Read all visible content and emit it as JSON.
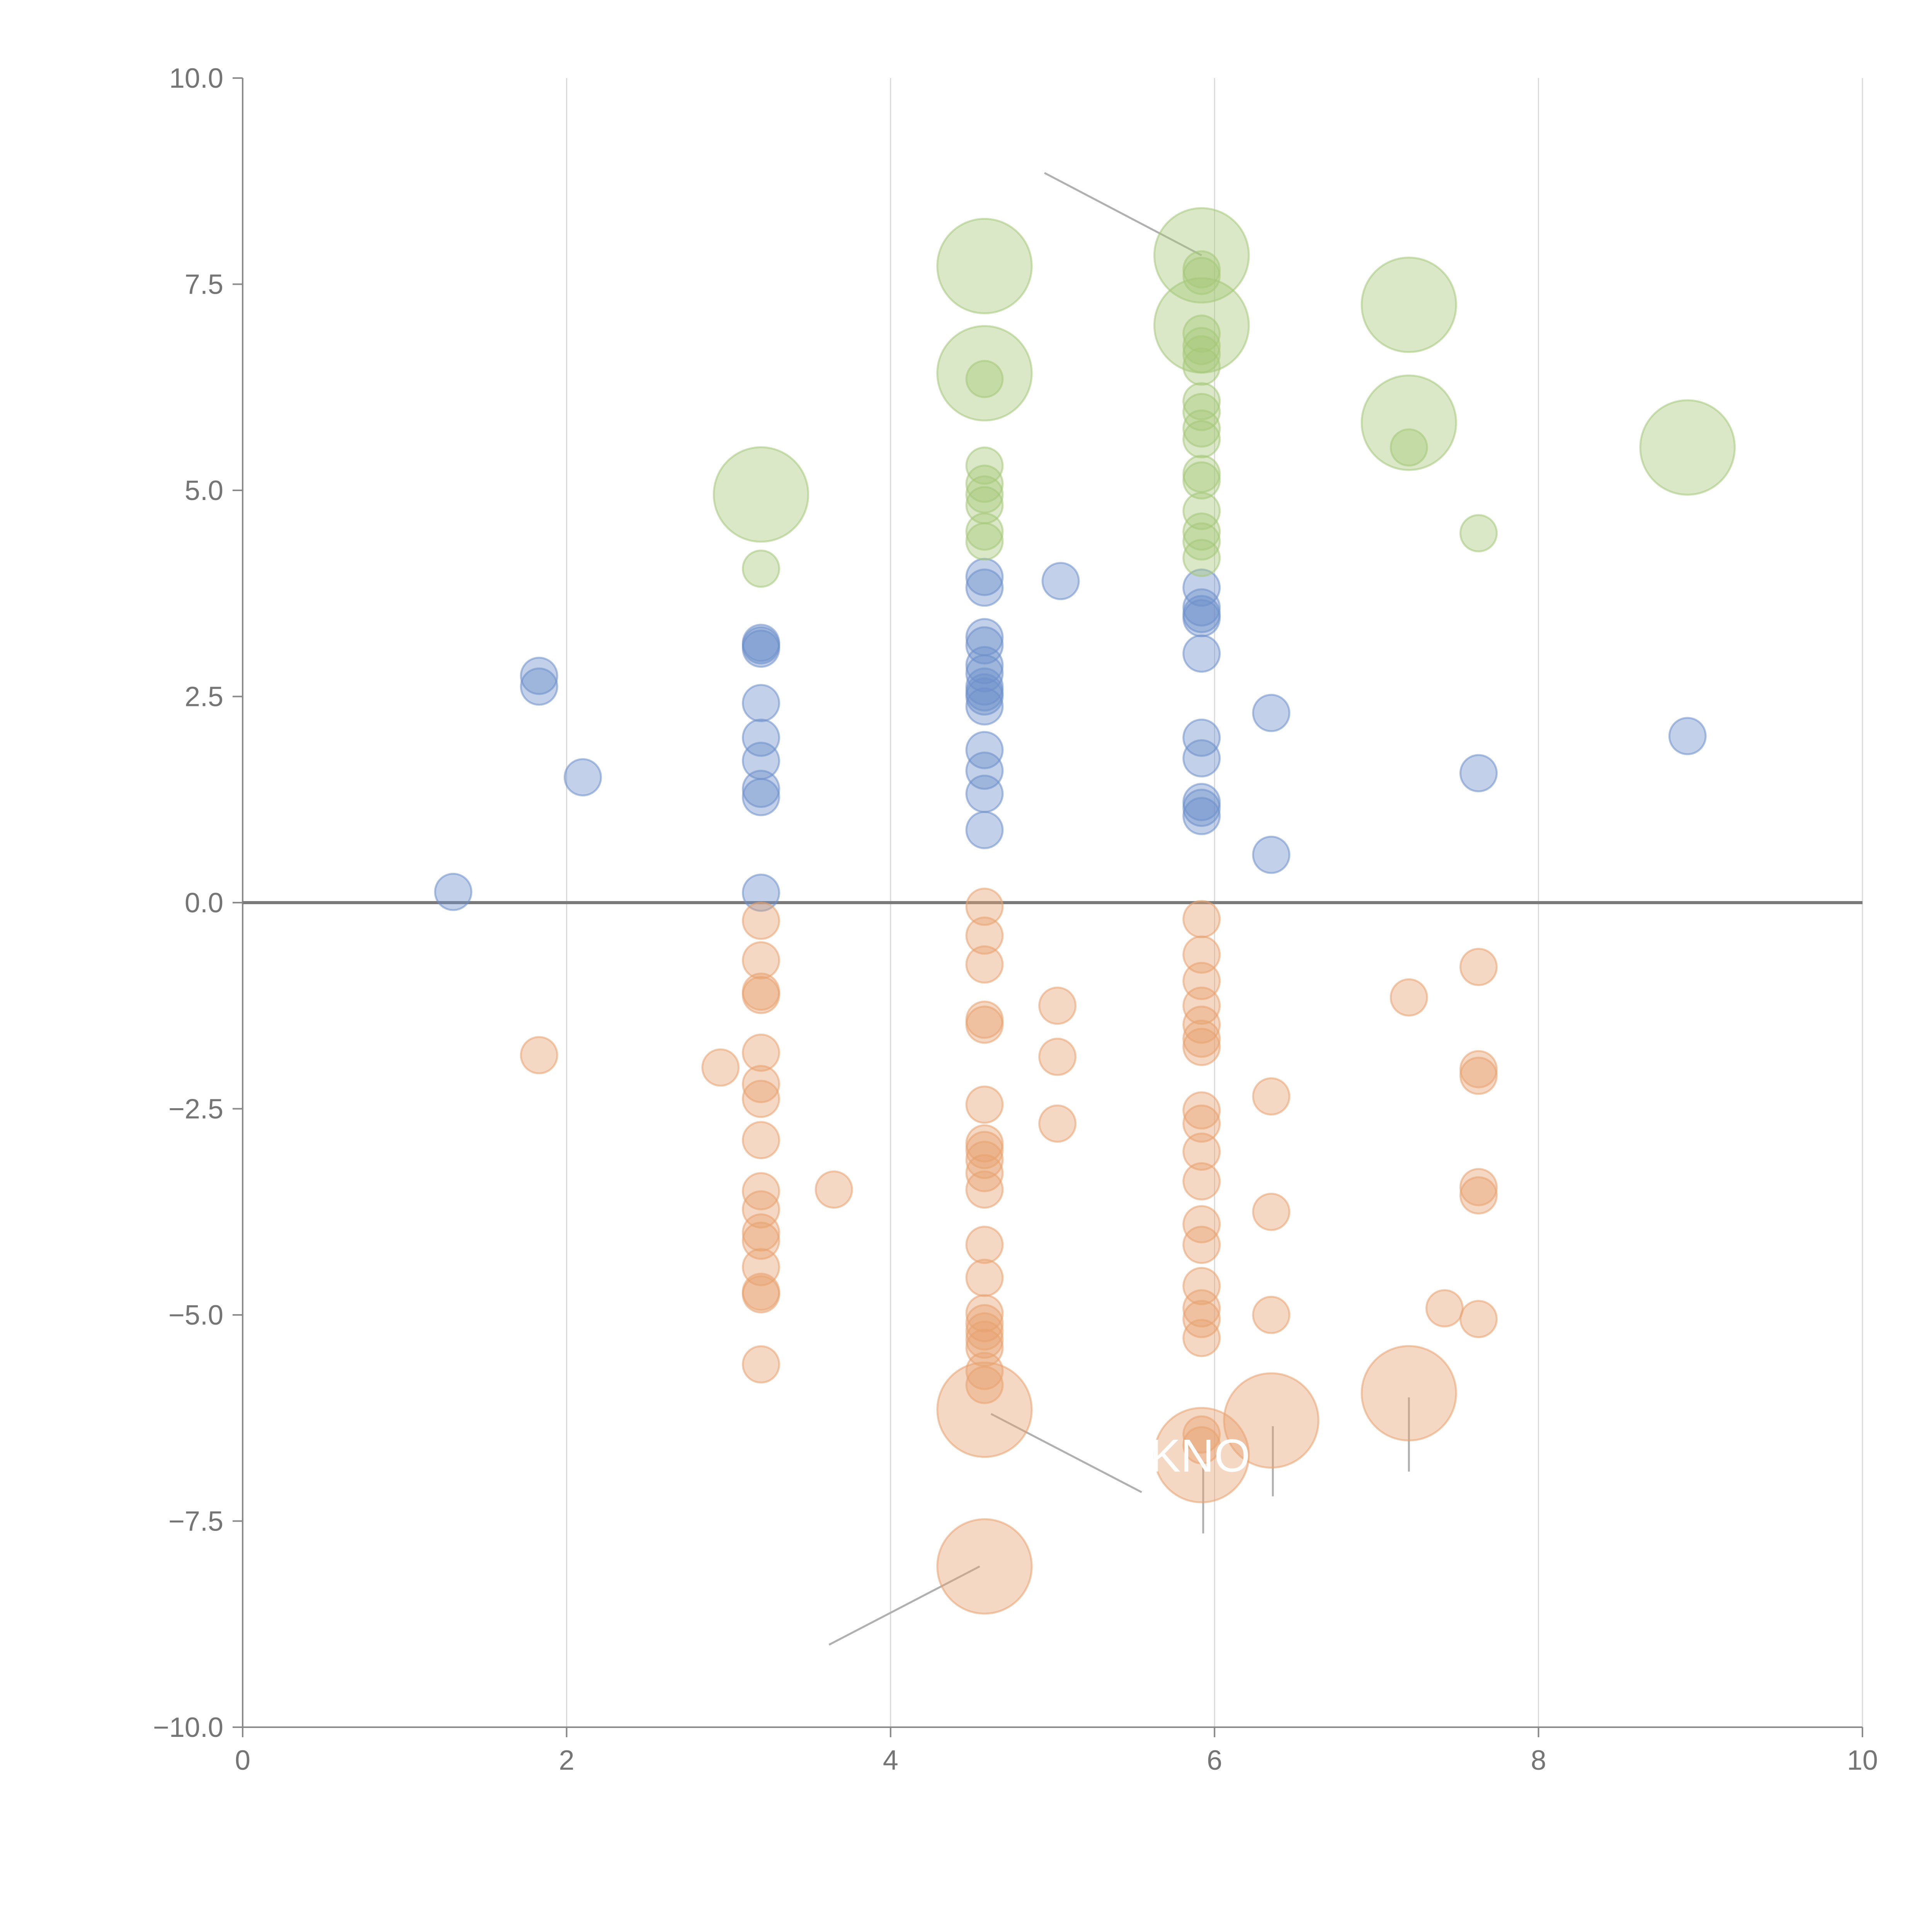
{
  "chart_data": {
    "type": "scatter",
    "title": "",
    "xlabel": "",
    "ylabel": "",
    "xlim": [
      0,
      10
    ],
    "ylim": [
      -10,
      10
    ],
    "x_ticks": [
      0,
      2,
      4,
      6,
      8,
      10
    ],
    "x_tick_labels": [
      "0",
      "2",
      "4",
      "6",
      "8",
      "10"
    ],
    "y_ticks": [
      -10,
      -7.5,
      -5,
      -2.5,
      0,
      2.5,
      5,
      7.5,
      10
    ],
    "y_tick_labels": [
      "−10.0",
      "−7.5",
      "−5.0",
      "−2.5",
      "0.0",
      "2.5",
      "5.0",
      "7.5",
      "10.0"
    ],
    "grid": "vertical",
    "zero_line": true,
    "legend": "none",
    "series": [
      {
        "name": "positive",
        "color": "#6d8fca",
        "points": [
          [
            1.3,
            0.13,
            1
          ],
          [
            1.83,
            2.75,
            1
          ],
          [
            1.83,
            2.62,
            1
          ],
          [
            2.1,
            1.52,
            1
          ],
          [
            3.2,
            3.12,
            1
          ],
          [
            3.2,
            3.08,
            1
          ],
          [
            3.2,
            3.15,
            1
          ],
          [
            3.2,
            2.42,
            1
          ],
          [
            3.2,
            2.0,
            1
          ],
          [
            3.2,
            1.72,
            1
          ],
          [
            3.2,
            1.38,
            1
          ],
          [
            3.2,
            1.28,
            1
          ],
          [
            3.2,
            0.12,
            1
          ],
          [
            4.58,
            3.95,
            1
          ],
          [
            4.58,
            3.82,
            1
          ],
          [
            4.58,
            3.22,
            1
          ],
          [
            4.58,
            3.12,
            1
          ],
          [
            4.58,
            2.88,
            1
          ],
          [
            4.58,
            2.78,
            1
          ],
          [
            4.58,
            2.62,
            1
          ],
          [
            4.58,
            2.55,
            1
          ],
          [
            4.58,
            2.5,
            1
          ],
          [
            4.58,
            2.38,
            1
          ],
          [
            4.58,
            1.85,
            1
          ],
          [
            4.58,
            1.6,
            1
          ],
          [
            4.58,
            1.32,
            1
          ],
          [
            4.58,
            0.88,
            1
          ],
          [
            5.05,
            3.9,
            1
          ],
          [
            5.92,
            3.82,
            1
          ],
          [
            5.92,
            3.58,
            1
          ],
          [
            5.92,
            3.5,
            1
          ],
          [
            5.92,
            3.45,
            1
          ],
          [
            5.92,
            3.02,
            1
          ],
          [
            5.92,
            2.0,
            1
          ],
          [
            5.92,
            1.75,
            1
          ],
          [
            5.92,
            1.22,
            1
          ],
          [
            5.92,
            1.15,
            1
          ],
          [
            5.92,
            1.05,
            1
          ],
          [
            6.35,
            2.3,
            1
          ],
          [
            6.35,
            0.58,
            1
          ],
          [
            7.63,
            1.57,
            1
          ],
          [
            8.92,
            2.02,
            1
          ]
        ]
      },
      {
        "name": "negative",
        "color": "#e8a36f",
        "points": [
          [
            1.83,
            -1.85,
            1
          ],
          [
            2.95,
            -2.0,
            1
          ],
          [
            3.2,
            -0.22,
            1
          ],
          [
            3.2,
            -0.7,
            1
          ],
          [
            3.2,
            -1.08,
            1
          ],
          [
            3.2,
            -1.12,
            1
          ],
          [
            3.2,
            -1.82,
            1
          ],
          [
            3.2,
            -2.2,
            1
          ],
          [
            3.2,
            -2.38,
            1
          ],
          [
            3.2,
            -2.88,
            1
          ],
          [
            3.2,
            -3.5,
            1
          ],
          [
            3.2,
            -3.72,
            1
          ],
          [
            3.2,
            -4.0,
            1
          ],
          [
            3.2,
            -4.1,
            1
          ],
          [
            3.2,
            -4.42,
            1
          ],
          [
            3.2,
            -4.72,
            1
          ],
          [
            3.2,
            -4.75,
            1
          ],
          [
            3.2,
            -5.6,
            1
          ],
          [
            3.65,
            -3.48,
            1
          ],
          [
            4.58,
            -0.05,
            1
          ],
          [
            4.58,
            -0.4,
            1
          ],
          [
            4.58,
            -0.75,
            1
          ],
          [
            4.58,
            -1.42,
            1
          ],
          [
            4.58,
            -1.48,
            1
          ],
          [
            4.58,
            -2.45,
            1
          ],
          [
            4.58,
            -2.92,
            1
          ],
          [
            4.58,
            -3.0,
            1
          ],
          [
            4.58,
            -3.12,
            1
          ],
          [
            4.58,
            -3.28,
            1
          ],
          [
            4.58,
            -3.48,
            1
          ],
          [
            4.58,
            -4.15,
            1
          ],
          [
            4.58,
            -4.55,
            1
          ],
          [
            4.58,
            -4.98,
            1
          ],
          [
            4.58,
            -5.1,
            1
          ],
          [
            4.58,
            -5.2,
            1
          ],
          [
            4.58,
            -5.3,
            1
          ],
          [
            4.58,
            -5.4,
            1
          ],
          [
            4.58,
            -5.68,
            1
          ],
          [
            4.58,
            -5.85,
            1
          ],
          [
            5.03,
            -1.25,
            1
          ],
          [
            5.03,
            -1.87,
            1
          ],
          [
            5.03,
            -2.68,
            1
          ],
          [
            5.92,
            -0.2,
            1
          ],
          [
            5.92,
            -0.63,
            1
          ],
          [
            5.92,
            -0.95,
            1
          ],
          [
            5.92,
            -1.25,
            1
          ],
          [
            5.92,
            -1.48,
            1
          ],
          [
            5.92,
            -1.65,
            1
          ],
          [
            5.92,
            -1.75,
            1
          ],
          [
            5.92,
            -2.52,
            1
          ],
          [
            5.92,
            -2.68,
            1
          ],
          [
            5.92,
            -3.02,
            1
          ],
          [
            5.92,
            -3.38,
            1
          ],
          [
            5.92,
            -3.9,
            1
          ],
          [
            5.92,
            -4.15,
            1
          ],
          [
            5.92,
            -4.65,
            1
          ],
          [
            5.92,
            -4.92,
            1
          ],
          [
            5.92,
            -5.05,
            1
          ],
          [
            5.92,
            -5.28,
            1
          ],
          [
            5.92,
            -6.45,
            1
          ],
          [
            5.92,
            -6.58,
            1
          ],
          [
            6.35,
            -2.35,
            1
          ],
          [
            6.35,
            -3.75,
            1
          ],
          [
            6.35,
            -5.0,
            1
          ],
          [
            7.2,
            -1.15,
            1
          ],
          [
            7.42,
            -4.92,
            1
          ],
          [
            7.63,
            -0.78,
            1
          ],
          [
            7.63,
            -2.02,
            1
          ],
          [
            7.63,
            -2.1,
            1
          ],
          [
            7.63,
            -3.45,
            1
          ],
          [
            7.63,
            -3.55,
            1
          ],
          [
            7.63,
            -5.05,
            1
          ],
          [
            4.58,
            -6.15,
            2.6
          ],
          [
            4.58,
            -8.05,
            2.6
          ],
          [
            5.92,
            -6.7,
            2.6
          ],
          [
            6.35,
            -6.28,
            2.6
          ],
          [
            7.2,
            -5.95,
            2.6
          ]
        ]
      },
      {
        "name": "highlight",
        "color": "#a6c77a",
        "points": [
          [
            3.2,
            4.05,
            1
          ],
          [
            4.58,
            5.3,
            1
          ],
          [
            4.58,
            5.08,
            1
          ],
          [
            4.58,
            4.95,
            1
          ],
          [
            4.58,
            4.82,
            1
          ],
          [
            4.58,
            4.5,
            1
          ],
          [
            4.58,
            4.38,
            1
          ],
          [
            4.58,
            6.35,
            1
          ],
          [
            5.92,
            7.68,
            1
          ],
          [
            5.92,
            7.6,
            1
          ],
          [
            5.92,
            6.9,
            1
          ],
          [
            5.92,
            6.75,
            1
          ],
          [
            5.92,
            6.65,
            1
          ],
          [
            5.92,
            6.5,
            1
          ],
          [
            5.92,
            6.08,
            1
          ],
          [
            5.92,
            5.95,
            1
          ],
          [
            5.92,
            5.75,
            1
          ],
          [
            5.92,
            5.62,
            1
          ],
          [
            5.92,
            5.2,
            1
          ],
          [
            5.92,
            5.12,
            1
          ],
          [
            5.92,
            4.75,
            1
          ],
          [
            5.92,
            4.5,
            1
          ],
          [
            5.92,
            4.38,
            1
          ],
          [
            5.92,
            4.18,
            1
          ],
          [
            7.2,
            5.52,
            1
          ],
          [
            7.63,
            4.48,
            1
          ],
          [
            3.2,
            4.95,
            2.6
          ],
          [
            4.58,
            7.72,
            2.6
          ],
          [
            4.58,
            6.42,
            2.6
          ],
          [
            5.92,
            7.85,
            2.6
          ],
          [
            5.92,
            7.0,
            2.6
          ],
          [
            7.2,
            7.25,
            2.6
          ],
          [
            7.2,
            5.82,
            2.6
          ],
          [
            8.92,
            5.52,
            2.6
          ]
        ]
      }
    ],
    "annotations": [
      {
        "text": "KNO",
        "x": 5.6,
        "y": -6.9
      }
    ],
    "leader_lines": [
      [
        [
          4.95,
          8.85
        ],
        [
          5.92,
          7.85
        ]
      ],
      [
        [
          4.62,
          -6.2
        ],
        [
          5.55,
          -7.15
        ]
      ],
      [
        [
          4.55,
          -8.05
        ],
        [
          3.62,
          -9.0
        ]
      ],
      [
        [
          5.93,
          -6.85
        ],
        [
          5.93,
          -7.65
        ]
      ],
      [
        [
          6.36,
          -6.35
        ],
        [
          6.36,
          -7.2
        ]
      ],
      [
        [
          7.2,
          -6.0
        ],
        [
          7.2,
          -6.9
        ]
      ]
    ]
  }
}
